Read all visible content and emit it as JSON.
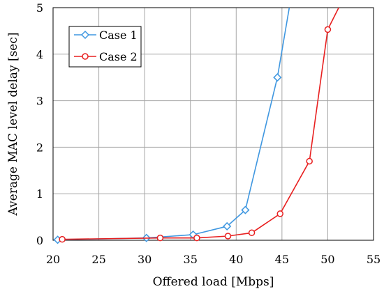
{
  "chart_data": {
    "type": "line",
    "title": "",
    "xlabel": "Offered load [Mbps]",
    "ylabel": "Average MAC level delay [sec]",
    "xlim": [
      20,
      55
    ],
    "ylim": [
      0,
      5
    ],
    "xticks": [
      "20",
      "25",
      "30",
      "35",
      "40",
      "45",
      "50",
      "55"
    ],
    "yticks": [
      "0",
      "1",
      "2",
      "3",
      "4",
      "5"
    ],
    "grid": true,
    "legend_position": "top-left",
    "series": [
      {
        "name": "Case 1",
        "color": "#3f97e0",
        "marker": "diamond",
        "x": [
          20.5,
          30.2,
          35.3,
          39.0,
          41.0,
          44.5
        ],
        "y": [
          0.01,
          0.05,
          0.12,
          0.3,
          0.65,
          3.5
        ],
        "curve_end": [
          45.8,
          5.0
        ]
      },
      {
        "name": "Case 2",
        "color": "#e82020",
        "marker": "circle",
        "x": [
          21.0,
          31.7,
          35.7,
          39.1,
          41.7,
          44.8,
          48.0,
          50.0
        ],
        "y": [
          0.02,
          0.05,
          0.05,
          0.09,
          0.16,
          0.57,
          1.7,
          4.53
        ],
        "curve_end": [
          51.2,
          5.0
        ]
      }
    ]
  }
}
